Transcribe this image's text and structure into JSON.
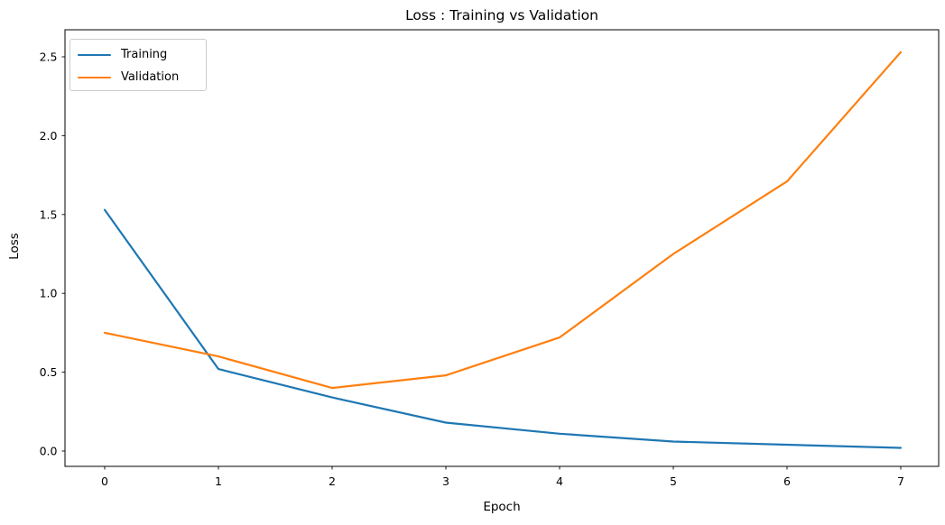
{
  "chart_data": {
    "type": "line",
    "title": "Loss : Training vs Validation",
    "xlabel": "Epoch",
    "ylabel": "Loss",
    "x": [
      0,
      1,
      2,
      3,
      4,
      5,
      6,
      7
    ],
    "series": [
      {
        "name": "Training",
        "color": "#1f77b4",
        "values": [
          1.53,
          0.52,
          0.34,
          0.18,
          0.11,
          0.06,
          0.04,
          0.02
        ]
      },
      {
        "name": "Validation",
        "color": "#ff7f0e",
        "values": [
          0.75,
          0.6,
          0.4,
          0.48,
          0.72,
          1.25,
          1.71,
          2.53
        ]
      }
    ],
    "x_tick_labels": [
      "0",
      "1",
      "2",
      "3",
      "4",
      "5",
      "6",
      "7"
    ],
    "y_ticks": [
      0.0,
      0.5,
      1.0,
      1.5,
      2.0,
      2.5
    ],
    "y_tick_labels": [
      "0.0",
      "0.5",
      "1.0",
      "1.5",
      "2.0",
      "2.5"
    ],
    "xlim": [
      -0.35,
      7.35
    ],
    "ylim": [
      -0.1,
      2.69
    ],
    "grid": false,
    "legend": {
      "position": "upper left",
      "entries": [
        "Training",
        "Validation"
      ]
    },
    "axis_color": "#000000",
    "background_color": "#ffffff"
  }
}
